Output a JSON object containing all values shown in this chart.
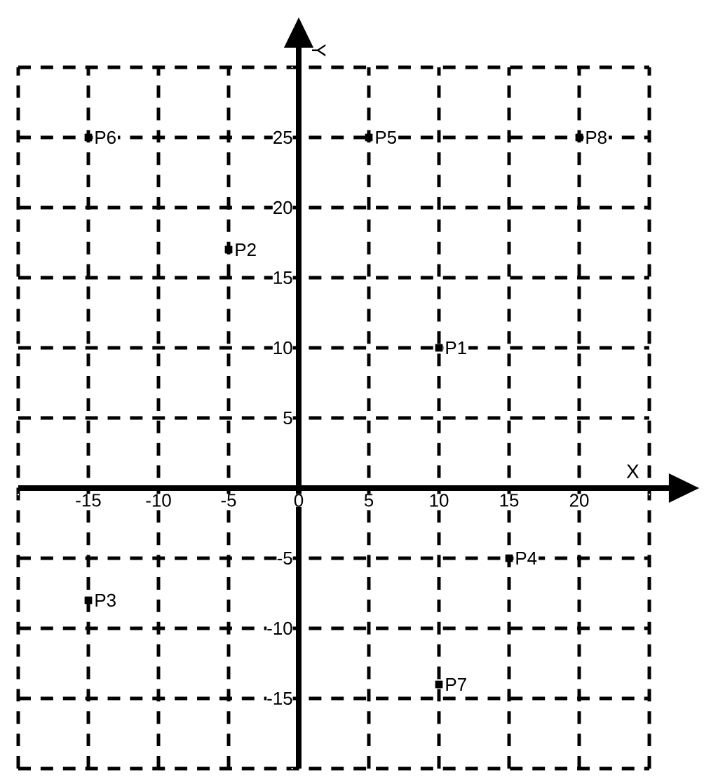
{
  "chart_data": {
    "type": "scatter",
    "xlabel": "X",
    "ylabel": "Y",
    "x": [
      10,
      -5,
      -15,
      15,
      5,
      -15,
      10,
      20
    ],
    "series": [
      {
        "color": "#000000",
        "values": [
          10,
          17,
          -8,
          -5,
          25,
          25,
          -14,
          25
        ]
      }
    ],
    "marker": "square",
    "grid": true,
    "xlim": [
      -20,
      25
    ],
    "ylim": [
      -20,
      30
    ],
    "xticks": [
      {
        "value": -20,
        "label": null
      },
      -15,
      -10,
      -5,
      0,
      5,
      10,
      15,
      20,
      {
        "value": 25,
        "label": null
      }
    ],
    "yticks": [
      {
        "value": -20,
        "label": null
      },
      -15,
      -10,
      -5,
      5,
      10,
      15,
      20,
      25,
      {
        "value": 30,
        "label": null
      }
    ],
    "annotations": [
      {
        "text": "P1",
        "x": 10,
        "y": 10
      },
      {
        "text": "P2",
        "x": -5,
        "y": 17
      },
      {
        "text": "P3",
        "x": -15,
        "y": -8
      },
      {
        "text": "P4",
        "x": 15,
        "y": -5
      },
      {
        "text": "P5",
        "x": 5,
        "y": 25
      },
      {
        "text": "P6",
        "x": -15,
        "y": 25
      },
      {
        "text": "P7",
        "x": 10,
        "y": -14
      },
      {
        "text": "P8",
        "x": 20,
        "y": 25
      }
    ]
  }
}
